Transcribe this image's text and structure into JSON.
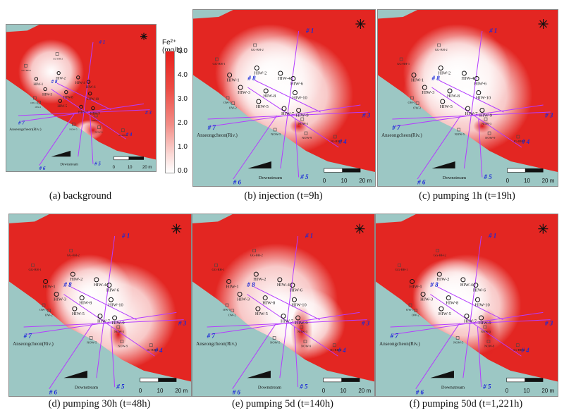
{
  "legend": {
    "title": "Fe²⁺ (mg/L)",
    "ticks": [
      "5.0",
      "4.0",
      "3.0",
      "2.0",
      "1.0",
      "0.0"
    ],
    "max_color": "#e8201c",
    "min_color": "#ffffff"
  },
  "colors": {
    "river": "#9cc7c4",
    "high": "#e32622",
    "low": "#ffffff",
    "line": "#b43cff",
    "label_blue": "#1c2ad6"
  },
  "map_labels": {
    "river": "Anseongcheon(Riv.)",
    "downstream": "Downstream",
    "scale": [
      "0",
      "10",
      "20 m"
    ]
  },
  "line_labels": [
    "# 1",
    "# 2",
    "# 3",
    "# 4",
    "# 5",
    "# 6",
    "# 7",
    "# 8"
  ],
  "wells": {
    "hiw": [
      "HIW-1",
      "HIW-2",
      "HIW-3",
      "HIW-4",
      "HIW-5",
      "HIW-6",
      "HIW-7",
      "HIW-8",
      "HIW-9",
      "HIW-10"
    ],
    "others": [
      "GG-BH-1",
      "GG-BH-2",
      "NOW-1",
      "NOW-2",
      "NOW-3",
      "NOW-4",
      "NOW-5",
      "NOW-6",
      "NOW-7",
      "NOW-8",
      "NOW-9",
      "OW-1",
      "OW-2",
      "OW-3",
      "OW-4",
      "IG-BH-2",
      "IG-BH-3"
    ]
  },
  "panels": [
    {
      "key": "a",
      "caption": "(a) background"
    },
    {
      "key": "b",
      "caption": "(b) injection (t=9h)"
    },
    {
      "key": "c",
      "caption": "(c) pumping 1h (t=19h)"
    },
    {
      "key": "d",
      "caption": "(d) pumping 30h (t=48h)"
    },
    {
      "key": "e",
      "caption": "(e) pumping 5d (t=140h)"
    },
    {
      "key": "f",
      "caption": "(f) pumping 50d (t=1,221h)"
    }
  ],
  "icons": [
    "compass-icon"
  ]
}
